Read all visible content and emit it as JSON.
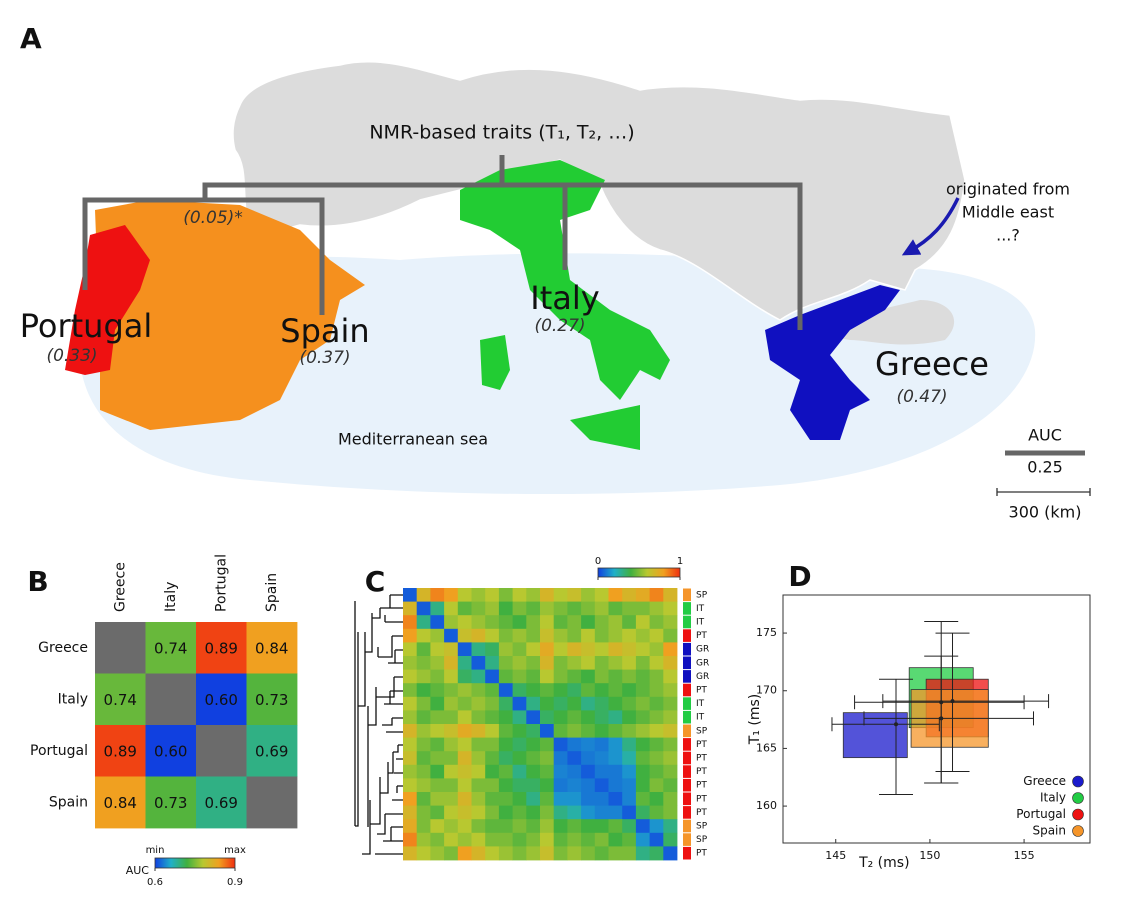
{
  "map": {
    "panel_label": "A",
    "root_label": "NMR-based traits (T₁, T₂, …)",
    "node_label": "(0.05)*",
    "countries": [
      {
        "name": "Portugal",
        "auc": "(0.33)"
      },
      {
        "name": "Spain",
        "auc": "(0.37)"
      },
      {
        "name": "Italy",
        "auc": "(0.27)"
      },
      {
        "name": "Greece",
        "auc": "(0.47)"
      }
    ],
    "sea_label": "Mediterranean sea",
    "annotation": [
      "originated from",
      "Middle east",
      "...?"
    ],
    "scale": {
      "auc_title": "AUC",
      "auc_value": "0.25",
      "distance": "300 (km)"
    }
  },
  "chart_data": [
    {
      "type": "heatmap",
      "panel_label": "B",
      "x_categories": [
        "Greece",
        "Italy",
        "Portugal",
        "Spain"
      ],
      "y_categories": [
        "Greece",
        "Italy",
        "Portugal",
        "Spain"
      ],
      "z": [
        [
          null,
          0.74,
          0.89,
          0.84
        ],
        [
          0.74,
          null,
          0.6,
          0.73
        ],
        [
          0.89,
          0.6,
          null,
          0.69
        ],
        [
          0.84,
          0.73,
          0.69,
          null
        ]
      ],
      "value_labels": [
        [
          null,
          "0.74",
          "0.89",
          "0.84"
        ],
        [
          "0.74",
          null,
          "0.60",
          "0.73"
        ],
        [
          "0.89",
          "0.60",
          null,
          "0.69"
        ],
        [
          "0.84",
          "0.73",
          "0.69",
          null
        ]
      ],
      "zlim": [
        0.6,
        0.9
      ],
      "zticks": [
        0.6,
        0.9
      ],
      "zlim_names": [
        "min",
        "max"
      ],
      "colorbar_title": "AUC",
      "colormap": [
        "#1040e0",
        "#20b0c8",
        "#40b040",
        "#b8c830",
        "#f0a020",
        "#f03010"
      ],
      "null_color": "#6b6b6b"
    },
    {
      "type": "heatmap",
      "panel_label": "C",
      "row_labels": [
        "SP",
        "IT",
        "IT",
        "PT",
        "GR",
        "GR",
        "GR",
        "PT",
        "IT",
        "IT",
        "SP",
        "PT",
        "PT",
        "PT",
        "PT",
        "PT",
        "PT",
        "SP",
        "SP",
        "PT"
      ],
      "group_colors": {
        "SP": "#f5952a",
        "IT": "#22cc44",
        "PT": "#ee1111",
        "GR": "#1010c0"
      },
      "z": [
        [
          0.05,
          0.7,
          0.85,
          0.8,
          0.6,
          0.55,
          0.6,
          0.5,
          0.6,
          0.55,
          0.7,
          0.6,
          0.65,
          0.55,
          0.6,
          0.8,
          0.7,
          0.75,
          0.85,
          0.7
        ],
        [
          0.7,
          0.05,
          0.3,
          0.6,
          0.45,
          0.5,
          0.55,
          0.4,
          0.5,
          0.45,
          0.55,
          0.5,
          0.45,
          0.5,
          0.55,
          0.45,
          0.5,
          0.5,
          0.55,
          0.6
        ],
        [
          0.85,
          0.3,
          0.05,
          0.55,
          0.6,
          0.55,
          0.5,
          0.45,
          0.4,
          0.5,
          0.6,
          0.45,
          0.5,
          0.4,
          0.5,
          0.55,
          0.45,
          0.6,
          0.5,
          0.55
        ],
        [
          0.8,
          0.6,
          0.55,
          0.05,
          0.65,
          0.7,
          0.6,
          0.5,
          0.55,
          0.5,
          0.65,
          0.55,
          0.5,
          0.6,
          0.5,
          0.55,
          0.6,
          0.55,
          0.6,
          0.5
        ],
        [
          0.6,
          0.45,
          0.6,
          0.65,
          0.05,
          0.3,
          0.35,
          0.55,
          0.5,
          0.6,
          0.75,
          0.6,
          0.7,
          0.65,
          0.6,
          0.7,
          0.65,
          0.6,
          0.55,
          0.8
        ],
        [
          0.55,
          0.5,
          0.55,
          0.7,
          0.3,
          0.05,
          0.3,
          0.5,
          0.55,
          0.5,
          0.7,
          0.5,
          0.55,
          0.6,
          0.5,
          0.55,
          0.6,
          0.5,
          0.6,
          0.7
        ],
        [
          0.6,
          0.55,
          0.5,
          0.6,
          0.35,
          0.3,
          0.05,
          0.45,
          0.5,
          0.45,
          0.6,
          0.5,
          0.45,
          0.4,
          0.5,
          0.45,
          0.5,
          0.45,
          0.5,
          0.6
        ],
        [
          0.5,
          0.4,
          0.45,
          0.5,
          0.55,
          0.5,
          0.45,
          0.05,
          0.35,
          0.4,
          0.45,
          0.4,
          0.35,
          0.45,
          0.4,
          0.45,
          0.4,
          0.45,
          0.5,
          0.55
        ],
        [
          0.6,
          0.5,
          0.4,
          0.55,
          0.5,
          0.55,
          0.5,
          0.35,
          0.05,
          0.3,
          0.4,
          0.35,
          0.4,
          0.3,
          0.35,
          0.4,
          0.45,
          0.5,
          0.45,
          0.5
        ],
        [
          0.55,
          0.45,
          0.5,
          0.5,
          0.6,
          0.5,
          0.45,
          0.4,
          0.3,
          0.05,
          0.35,
          0.4,
          0.45,
          0.4,
          0.35,
          0.3,
          0.4,
          0.45,
          0.5,
          0.55
        ],
        [
          0.7,
          0.55,
          0.6,
          0.65,
          0.75,
          0.7,
          0.6,
          0.45,
          0.4,
          0.35,
          0.05,
          0.45,
          0.5,
          0.45,
          0.4,
          0.45,
          0.5,
          0.55,
          0.6,
          0.65
        ],
        [
          0.6,
          0.5,
          0.45,
          0.55,
          0.6,
          0.5,
          0.5,
          0.4,
          0.35,
          0.4,
          0.45,
          0.05,
          0.1,
          0.12,
          0.1,
          0.15,
          0.3,
          0.4,
          0.45,
          0.5
        ],
        [
          0.65,
          0.45,
          0.5,
          0.5,
          0.7,
          0.55,
          0.45,
          0.35,
          0.4,
          0.45,
          0.5,
          0.1,
          0.05,
          0.1,
          0.12,
          0.15,
          0.25,
          0.45,
          0.5,
          0.55
        ],
        [
          0.55,
          0.5,
          0.4,
          0.6,
          0.65,
          0.6,
          0.4,
          0.45,
          0.3,
          0.4,
          0.45,
          0.12,
          0.1,
          0.05,
          0.1,
          0.1,
          0.15,
          0.4,
          0.45,
          0.5
        ],
        [
          0.6,
          0.55,
          0.5,
          0.5,
          0.6,
          0.5,
          0.5,
          0.4,
          0.35,
          0.35,
          0.4,
          0.1,
          0.12,
          0.1,
          0.05,
          0.1,
          0.12,
          0.4,
          0.5,
          0.45
        ],
        [
          0.8,
          0.45,
          0.55,
          0.55,
          0.7,
          0.55,
          0.45,
          0.45,
          0.4,
          0.3,
          0.45,
          0.15,
          0.15,
          0.1,
          0.1,
          0.05,
          0.12,
          0.45,
          0.4,
          0.5
        ],
        [
          0.7,
          0.5,
          0.45,
          0.6,
          0.65,
          0.6,
          0.5,
          0.4,
          0.45,
          0.4,
          0.5,
          0.3,
          0.25,
          0.15,
          0.12,
          0.12,
          0.05,
          0.35,
          0.45,
          0.5
        ],
        [
          0.75,
          0.5,
          0.6,
          0.55,
          0.6,
          0.5,
          0.45,
          0.45,
          0.5,
          0.45,
          0.55,
          0.4,
          0.45,
          0.4,
          0.4,
          0.45,
          0.35,
          0.05,
          0.15,
          0.3
        ],
        [
          0.85,
          0.55,
          0.5,
          0.6,
          0.55,
          0.6,
          0.5,
          0.5,
          0.45,
          0.5,
          0.6,
          0.45,
          0.5,
          0.45,
          0.5,
          0.4,
          0.45,
          0.15,
          0.05,
          0.35
        ],
        [
          0.7,
          0.6,
          0.55,
          0.5,
          0.8,
          0.7,
          0.6,
          0.55,
          0.5,
          0.55,
          0.65,
          0.5,
          0.55,
          0.5,
          0.45,
          0.5,
          0.5,
          0.3,
          0.35,
          0.05
        ]
      ],
      "zlim": [
        0,
        1
      ],
      "zticks": [
        0,
        1
      ],
      "colormap": [
        "#1040e0",
        "#20b0c8",
        "#40b040",
        "#b8c830",
        "#f0a020",
        "#f03010"
      ]
    },
    {
      "type": "scatter",
      "panel_label": "D",
      "xlabel": "T₂ (ms)",
      "ylabel": "T₁ (ms)",
      "xlim": [
        142.2,
        158.5
      ],
      "ylim": [
        156.8,
        178.3
      ],
      "xticks": [
        145,
        150,
        155
      ],
      "yticks": [
        160,
        165,
        170,
        175
      ],
      "legend": "lower right",
      "series": [
        {
          "name": "Greece",
          "color": "#1a1acc",
          "x": 148.2,
          "y": 167.1,
          "box_x": [
            145.4,
            148.8
          ],
          "box_y": [
            164.2,
            168.1
          ],
          "whisker_x": [
            144.8,
            150.5
          ],
          "whisker_y": [
            161,
            171
          ]
        },
        {
          "name": "Italy",
          "color": "#22cc44",
          "x": 150.6,
          "y": 169,
          "box_x": [
            148.9,
            152.3
          ],
          "box_y": [
            166.8,
            172
          ],
          "whisker_x": [
            146,
            155
          ],
          "whisker_y": [
            162,
            176
          ]
        },
        {
          "name": "Portugal",
          "color": "#ee1111",
          "x": 151.2,
          "y": 169.1,
          "box_x": [
            149.8,
            153.1
          ],
          "box_y": [
            166,
            171
          ],
          "whisker_x": [
            147.5,
            156.3
          ],
          "whisker_y": [
            163,
            175
          ]
        },
        {
          "name": "Spain",
          "color": "#f5952a",
          "x": 150.6,
          "y": 167.6,
          "box_x": [
            149,
            153.1
          ],
          "box_y": [
            165.1,
            170.1
          ],
          "whisker_x": [
            146.5,
            155.5
          ],
          "whisker_y": [
            162,
            173
          ]
        }
      ]
    }
  ]
}
